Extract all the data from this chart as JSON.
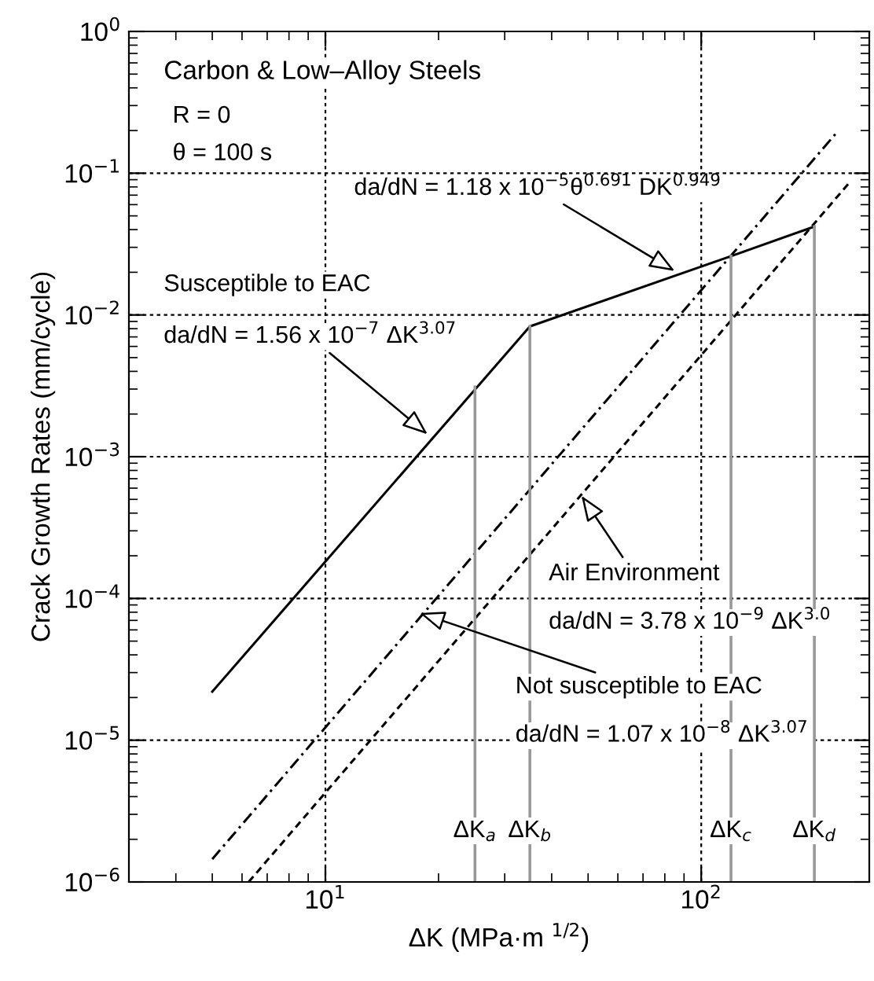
{
  "chart_data": {
    "type": "line",
    "log": "xy",
    "grid": true,
    "legend": false,
    "marker": "none",
    "xlabel": "ΔK (MPa·m $^{1/2}$)",
    "ylabel": "Crack Growth Rates (mm/cycle)",
    "xlim": [
      3,
      280
    ],
    "xticks": [
      {
        "value": 10,
        "label": "10$^{1}$"
      },
      {
        "value": 100,
        "label": "10$^{2}$"
      }
    ],
    "ylim": [
      1e-06,
      1
    ],
    "yticks": [
      {
        "value": 1e-06,
        "label": "10$^{−6}$"
      },
      {
        "value": 1e-05,
        "label": "10$^{−5}$"
      },
      {
        "value": 0.0001,
        "label": "10$^{−4}$"
      },
      {
        "value": 0.001,
        "label": "10$^{−3}$"
      },
      {
        "value": 0.01,
        "label": "10$^{−2}$"
      },
      {
        "value": 0.1,
        "label": "10$^{−1}$"
      },
      {
        "value": 1,
        "label": "10$^{0}$"
      }
    ],
    "series": [
      {
        "x": [
          5,
          35,
          120,
          200
        ],
        "values": [
          2.2e-05,
          0.0083,
          0.026,
          0.042
        ],
        "color": "#000000",
        "line_style": "solid"
      },
      {
        "x": [
          5,
          228
        ],
        "values": [
          1.45e-06,
          0.19
        ],
        "color": "#000000",
        "line_style": "dashdot"
      },
      {
        "x": [
          6.25,
          249
        ],
        "values": [
          1e-06,
          0.087
        ],
        "color": "#000000",
        "line_style": "dashed"
      },
      {
        "name": "ΔK$_{a}$",
        "x": [
          25,
          25
        ],
        "values": [
          1e-06,
          0.0031
        ],
        "color": "#999999",
        "line_style": "solid"
      },
      {
        "name": "ΔK$_{b}$",
        "x": [
          35,
          35
        ],
        "values": [
          1e-06,
          0.0083
        ],
        "color": "#999999",
        "line_style": "solid"
      },
      {
        "name": "ΔK$_{c}$",
        "x": [
          120,
          120
        ],
        "values": [
          1e-06,
          0.026
        ],
        "color": "#999999",
        "line_style": "solid"
      },
      {
        "name": "ΔK$_{d}$",
        "x": [
          200,
          200
        ],
        "values": [
          1e-06,
          0.042
        ],
        "color": "#999999",
        "line_style": "solid"
      }
    ],
    "annotations": [
      "Carbon & Low–Alloy Steels",
      "R = 0",
      "θ = 100 s",
      {
        "text": "da/dN = 1.18 x 10$^{−5}$θ$^{0.691}$ DK$^{0.949}$",
        "x": 85,
        "y": 0.0204
      },
      "Susceptible to EAC",
      {
        "text": "da/dN = 1.56 x 10$^{−7}$ ΔK$^{3.07}$",
        "x": 18.7,
        "y": 0.00144
      },
      {
        "text": "Air Environment",
        "x": 48,
        "y": 0.00053
      },
      "da/dN = 3.78 x 10$^{−9}$ ΔK$^{3.0}$",
      {
        "text": "Not susceptible to EAC",
        "x": 17.8,
        "y": 7.9e-05
      },
      "da/dN = 1.07 x 10$^{−8}$ ΔK$^{3.07}$"
    ]
  }
}
